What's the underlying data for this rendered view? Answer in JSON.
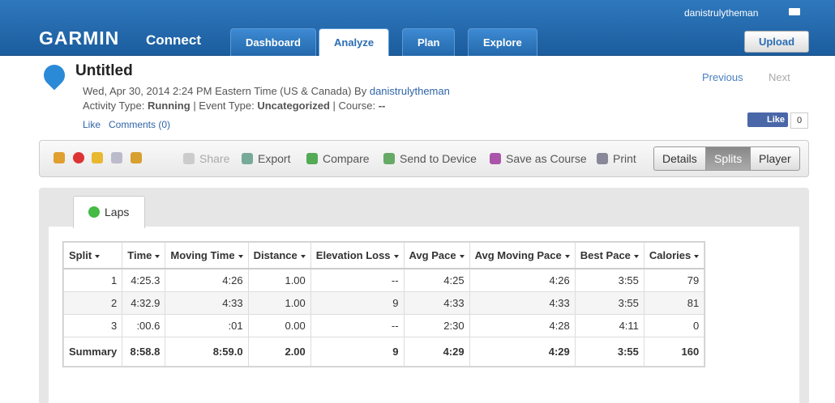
{
  "header": {
    "username": "danistrulytheman",
    "logo": "GARMIN",
    "logo_sub": "Connect",
    "nav": [
      "Dashboard",
      "Analyze",
      "Plan",
      "Explore"
    ],
    "upload": "Upload"
  },
  "activity": {
    "title": "Untitled",
    "date": "Wed, Apr 30, 2014 2:24 PM Eastern Time (US & Canada) By",
    "author": "danistrulytheman",
    "activity_type_label": "Activity Type:",
    "activity_type": "Running",
    "event_type_label": "| Event Type:",
    "event_type": "Uncategorized",
    "course_label": "| Course:",
    "course": "--",
    "like": "Like",
    "comments": "Comments (0)",
    "previous": "Previous",
    "next": "Next",
    "like_button": "Like",
    "like_count": "0"
  },
  "toolbar": {
    "actions": [
      "Share",
      "Export",
      "Compare",
      "Send to Device",
      "Save as Course",
      "Print"
    ],
    "views": [
      "Details",
      "Splits",
      "Player"
    ]
  },
  "laps": {
    "tab": "Laps",
    "table": {
      "columns": [
        "Split",
        "Time",
        "Moving Time",
        "Distance",
        "Elevation Loss",
        "Avg Pace",
        "Avg Moving Pace",
        "Best Pace",
        "Calories"
      ],
      "rows": [
        [
          "1",
          "4:25.3",
          "4:26",
          "1.00",
          "--",
          "4:25",
          "4:26",
          "3:55",
          "79"
        ],
        [
          "2",
          "4:32.9",
          "4:33",
          "1.00",
          "9",
          "4:33",
          "4:33",
          "3:55",
          "81"
        ],
        [
          "3",
          ":00.6",
          ":01",
          "0.00",
          "--",
          "2:30",
          "4:28",
          "4:11",
          "0"
        ],
        [
          "Summary",
          "8:58.8",
          "8:59.0",
          "2.00",
          "9",
          "4:29",
          "4:29",
          "3:55",
          "160"
        ]
      ]
    }
  }
}
